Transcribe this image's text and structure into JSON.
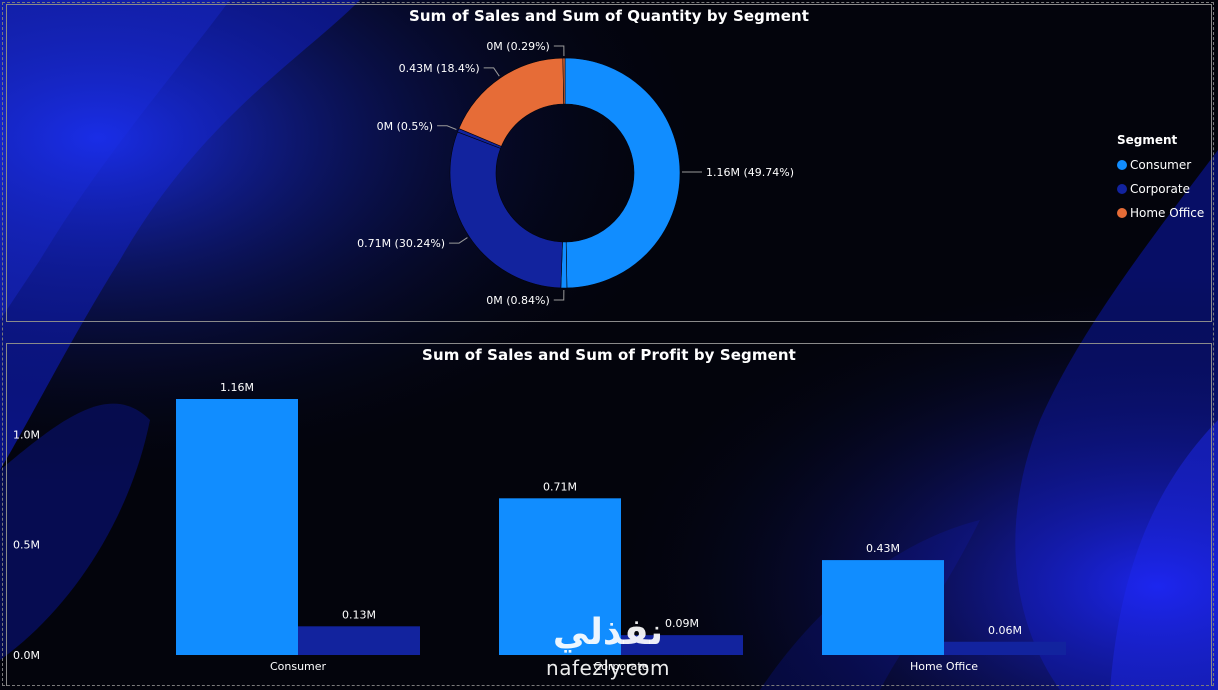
{
  "colors": {
    "consumer": "#118dff",
    "corporate": "#12239e",
    "home_office": "#e66c37",
    "background": "#03040c",
    "text": "#ffffff"
  },
  "donut_visual": {
    "title": "Sum of Sales and Sum of Quantity by Segment"
  },
  "bar_visual": {
    "title": "Sum of Sales and Sum of Profit by Segment"
  },
  "legend": {
    "title": "Segment",
    "items": [
      {
        "label": "Consumer",
        "color": "#118dff"
      },
      {
        "label": "Corporate",
        "color": "#12239e"
      },
      {
        "label": "Home Office",
        "color": "#e66c37"
      }
    ]
  },
  "watermark": {
    "arabic": "نفذلي",
    "latin": "nafezly.com"
  },
  "chart_data": [
    {
      "type": "pie",
      "title": "Sum of Sales and Sum of Quantity by Segment",
      "legend_title": "Segment",
      "legend_position": "right",
      "slices": [
        {
          "segment": "Consumer",
          "measure": "Sales",
          "value": 1.16,
          "percent": 49.74,
          "label": "1.16M (49.74%)",
          "color": "#118dff"
        },
        {
          "segment": "Consumer",
          "measure": "Quantity",
          "value": 0,
          "percent": 0.84,
          "label": "0M (0.84%)",
          "color": "#118dff"
        },
        {
          "segment": "Corporate",
          "measure": "Sales",
          "value": 0.71,
          "percent": 30.24,
          "label": "0.71M (30.24%)",
          "color": "#12239e"
        },
        {
          "segment": "Corporate",
          "measure": "Quantity",
          "value": 0,
          "percent": 0.5,
          "label": "0M (0.5%)",
          "color": "#12239e"
        },
        {
          "segment": "Home Office",
          "measure": "Sales",
          "value": 0.43,
          "percent": 18.4,
          "label": "0.43M (18.4%)",
          "color": "#e66c37"
        },
        {
          "segment": "Home Office",
          "measure": "Quantity",
          "value": 0,
          "percent": 0.29,
          "label": "0M (0.29%)",
          "color": "#e66c37"
        }
      ]
    },
    {
      "type": "bar",
      "title": "Sum of Sales and Sum of Profit by Segment",
      "categories": [
        "Consumer",
        "Corporate",
        "Home Office"
      ],
      "series": [
        {
          "measure": "Sum of Sales",
          "values": [
            1.16,
            0.71,
            0.43
          ],
          "labels": [
            "1.16M",
            "0.71M",
            "0.43M"
          ],
          "color": "#118dff"
        },
        {
          "measure": "Sum of Profit",
          "values": [
            0.13,
            0.09,
            0.06
          ],
          "labels": [
            "0.13M",
            "0.09M",
            "0.06M"
          ],
          "color": "#12239e"
        }
      ],
      "ylim": [
        0,
        1.16
      ],
      "yticks": [
        0,
        0.5,
        1.0
      ],
      "ytick_labels": [
        "0.0M",
        "0.5M",
        "1.0M"
      ],
      "grid": false,
      "unit": "M"
    }
  ]
}
